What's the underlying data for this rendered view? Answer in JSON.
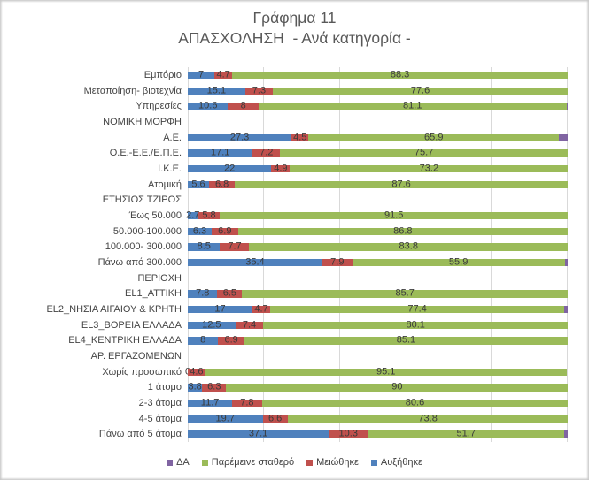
{
  "title": {
    "line1": "Γράφημα 11",
    "line2": "ΑΠΑΣΧΟΛΗΣΗ  - Ανά κατηγορία -"
  },
  "chart_data": {
    "type": "bar",
    "orientation": "horizontal",
    "stacked": true,
    "title": "Γράφημα 11",
    "subtitle": "ΑΠΑΣΧΟΛΗΣΗ  - Ανά κατηγορία -",
    "axis_range": [
      0,
      100
    ],
    "gridlines_percent": [
      0,
      20,
      40,
      60,
      80,
      100
    ],
    "grid": true,
    "legend_position": "bottom",
    "legend_order": [
      "ΔΑ",
      "Παρέμεινε σταθερό",
      "Μειώθηκε",
      "Αυξήθηκε"
    ],
    "categories": [
      "Εμπόριο",
      "Μεταποίηση- βιοτεχνία",
      "Υπηρεσίες",
      "ΝΟΜΙΚΗ ΜΟΡΦΗ",
      "Α.Ε.",
      "Ο.Ε.-Ε.Ε./Ε.Π.Ε.",
      "Ι.Κ.Ε.",
      "Ατομική",
      "ΕΤΗΣΙΟΣ ΤΖΙΡΟΣ",
      "Έως 50.000",
      "50.000-100.000",
      "100.000- 300.000",
      "Πάνω από 300.000",
      "ΠΕΡΙΟΧΗ",
      "EL1_ΑΤΤΙΚΗ",
      "EL2_ΝΗΣΙΑ ΑΙΓΑΙΟΥ & ΚΡΗΤΗ",
      "EL3_ΒΟΡΕΙΑ ΕΛΛΑΔΑ",
      "EL4_ΚΕΝΤΡΙΚΗ ΕΛΛΑΔΑ",
      "ΑΡ. ΕΡΓΑΖΟΜΕΝΩΝ",
      "Χωρίς προσωπικό",
      "1 άτομο",
      "2-3 άτομα",
      "4-5 άτομα",
      "Πάνω από 5 άτομα"
    ],
    "series": [
      {
        "name": "Αυξήθηκε",
        "color": "#4f81bd",
        "data_labels": true,
        "values": [
          7,
          15.1,
          10.6,
          null,
          27.3,
          17.1,
          22,
          5.6,
          null,
          2.7,
          6.3,
          8.5,
          35.4,
          null,
          7.8,
          17,
          12.5,
          8,
          null,
          0,
          3.8,
          11.7,
          19.7,
          37.1
        ]
      },
      {
        "name": "Μειώθηκε",
        "color": "#c0504d",
        "data_labels": true,
        "values": [
          4.7,
          7.3,
          8,
          null,
          4.5,
          7.2,
          4.9,
          6.8,
          null,
          5.8,
          6.9,
          7.7,
          7.9,
          null,
          6.5,
          4.7,
          7.4,
          6.9,
          null,
          4.6,
          6.3,
          7.8,
          6.6,
          10.3
        ]
      },
      {
        "name": "Παρέμεινε σταθερό",
        "color": "#9bbb59",
        "data_labels": true,
        "values": [
          88.3,
          77.6,
          81.1,
          null,
          65.9,
          75.7,
          73.2,
          87.6,
          null,
          91.5,
          86.8,
          83.8,
          55.9,
          null,
          85.7,
          77.4,
          80.1,
          85.1,
          null,
          95.1,
          90,
          80.6,
          73.8,
          51.7
        ]
      },
      {
        "name": "ΔΑ",
        "color": "#8064a2",
        "data_labels": false,
        "values": [
          0,
          0,
          0.3,
          null,
          2.3,
          0,
          0,
          0,
          null,
          0,
          0,
          0,
          0.8,
          null,
          0,
          0.9,
          0,
          0,
          null,
          0,
          0,
          0,
          0,
          0.9
        ]
      }
    ]
  },
  "colors": {
    "increase_blue": "#4f81bd",
    "decrease_red": "#c0504d",
    "stable_green": "#9bbb59",
    "na_purple": "#8064a2",
    "gridline": "#d9d9d9",
    "title_text": "#595959",
    "label_text": "#3f3f3f"
  }
}
